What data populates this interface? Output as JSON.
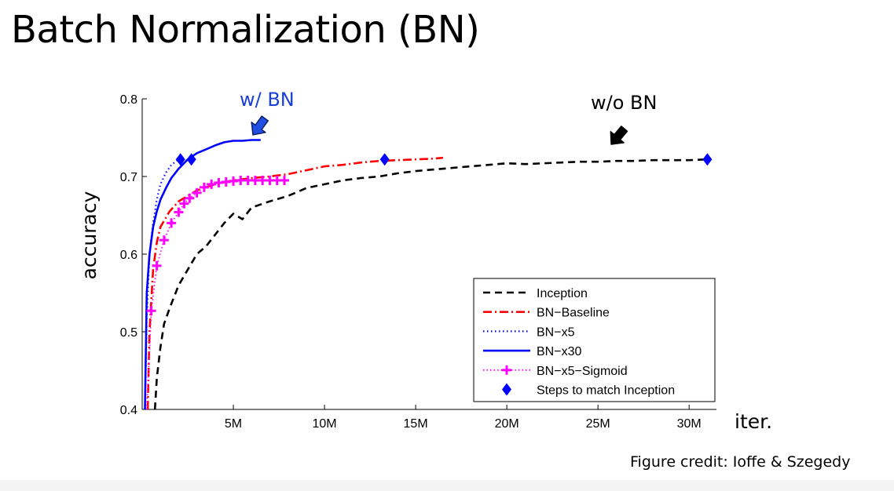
{
  "slide": {
    "title": "Batch Normalization (BN)",
    "credit": "Figure credit: Ioffe & Szegedy"
  },
  "chart_data": {
    "type": "line",
    "xlabel": "iter.",
    "ylabel": "accuracy",
    "xlim": [
      0,
      31500000
    ],
    "ylim": [
      0.4,
      0.8
    ],
    "xticks": [
      5000000,
      10000000,
      15000000,
      20000000,
      25000000,
      30000000
    ],
    "xtick_labels": [
      "5M",
      "10M",
      "15M",
      "20M",
      "25M",
      "30M"
    ],
    "yticks": [
      0.4,
      0.5,
      0.6,
      0.7,
      0.8
    ],
    "ytick_labels": [
      "0.4",
      "0.5",
      "0.6",
      "0.7",
      "0.8"
    ],
    "legend_position": "bottom-right",
    "series": [
      {
        "name": "Inception",
        "style": "dashed",
        "color": "#000000",
        "x": [
          700000,
          800000,
          1000000,
          1200000,
          1500000,
          2000000,
          2500000,
          3000000,
          3500000,
          4000000,
          4500000,
          5000000,
          5500000,
          6000000,
          7000000,
          8000000,
          9000000,
          10000000,
          11000000,
          12000000,
          13000000,
          14000000,
          15000000,
          16000000,
          17000000,
          18000000,
          19000000,
          20000000,
          21000000,
          22000000,
          23000000,
          24000000,
          25000000,
          26000000,
          27000000,
          28000000,
          29000000,
          30000000,
          31000000
        ],
        "y": [
          0.4,
          0.44,
          0.48,
          0.51,
          0.53,
          0.56,
          0.58,
          0.6,
          0.61,
          0.625,
          0.64,
          0.652,
          0.645,
          0.66,
          0.668,
          0.675,
          0.685,
          0.69,
          0.695,
          0.698,
          0.7,
          0.704,
          0.707,
          0.709,
          0.711,
          0.713,
          0.715,
          0.717,
          0.716,
          0.717,
          0.718,
          0.719,
          0.719,
          0.72,
          0.72,
          0.721,
          0.721,
          0.721,
          0.722
        ]
      },
      {
        "name": "BN−Baseline",
        "style": "dashdot",
        "color": "#ff0000",
        "x": [
          300000,
          400000,
          600000,
          800000,
          1000000,
          1500000,
          2000000,
          3000000,
          4000000,
          5000000,
          6000000,
          7000000,
          8000000,
          9000000,
          10000000,
          11000000,
          12000000,
          13000000,
          14000000,
          15000000,
          16000000,
          16500000
        ],
        "y": [
          0.4,
          0.5,
          0.58,
          0.615,
          0.635,
          0.655,
          0.668,
          0.682,
          0.69,
          0.695,
          0.698,
          0.7,
          0.703,
          0.708,
          0.713,
          0.715,
          0.718,
          0.72,
          0.721,
          0.722,
          0.723,
          0.724
        ]
      },
      {
        "name": "BN−x5",
        "style": "dotted",
        "color": "#0000ff",
        "x": [
          150000,
          250000,
          400000,
          600000,
          800000,
          1000000,
          1300000,
          1600000,
          2000000
        ],
        "y": [
          0.4,
          0.52,
          0.6,
          0.64,
          0.67,
          0.69,
          0.705,
          0.715,
          0.722
        ]
      },
      {
        "name": "BN−x30",
        "style": "solid",
        "color": "#0000ff",
        "x": [
          150000,
          250000,
          400000,
          600000,
          800000,
          1000000,
          1300000,
          1600000,
          2000000,
          2500000,
          3000000,
          3500000,
          4000000,
          4500000,
          5000000,
          5500000,
          6000000,
          6500000
        ],
        "y": [
          0.4,
          0.55,
          0.6,
          0.635,
          0.655,
          0.67,
          0.685,
          0.698,
          0.71,
          0.722,
          0.73,
          0.735,
          0.74,
          0.744,
          0.746,
          0.746,
          0.747,
          0.747
        ]
      },
      {
        "name": "BN−x5−Sigmoid",
        "style": "dotted-plus",
        "color": "#ff00ff",
        "x": [
          250000,
          500000,
          800000,
          1200000,
          1600000,
          2000000,
          2300000,
          2600000,
          3000000,
          3400000,
          3800000,
          4200000,
          4600000,
          5000000,
          5400000,
          5800000,
          6200000,
          6600000,
          7000000,
          7400000,
          7800000
        ],
        "y": [
          0.4,
          0.527,
          0.585,
          0.618,
          0.64,
          0.654,
          0.665,
          0.672,
          0.679,
          0.686,
          0.69,
          0.692,
          0.693,
          0.694,
          0.695,
          0.695,
          0.695,
          0.695,
          0.695,
          0.695,
          0.695
        ]
      },
      {
        "name": "Steps to match Inception",
        "style": "markers-diamond",
        "color": "#0000ff",
        "x": [
          2100000,
          2700000,
          13300000,
          31000000
        ],
        "y": [
          0.722,
          0.722,
          0.722,
          0.722
        ]
      }
    ],
    "annotations": [
      {
        "text": "w/ BN",
        "color": "#1a3fd8",
        "arrow_color": "#1f4ee0"
      },
      {
        "text": "w/o BN",
        "color": "#000000",
        "arrow_color": "#000000"
      }
    ]
  }
}
